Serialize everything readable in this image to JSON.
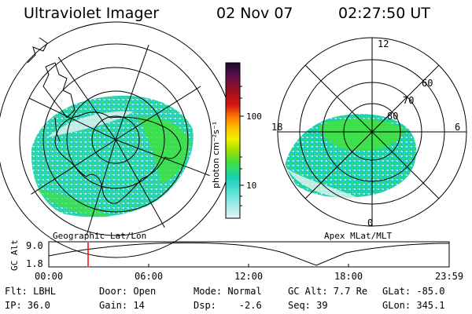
{
  "header": {
    "instrument": "Ultraviolet Imager",
    "date": "02 Nov 07",
    "time": "02:27:50 UT"
  },
  "left_panel": {
    "caption": "Geographic Lat/Lon"
  },
  "right_panel": {
    "caption": "Apex MLat/MLT",
    "mlt_labels": {
      "top": "12",
      "left": "18",
      "right": "6",
      "bottom": "0"
    },
    "lat_labels": [
      "60",
      "70",
      "80"
    ]
  },
  "colorbar": {
    "label": "photon cm⁻²s⁻¹",
    "ticks": [
      "100",
      "10"
    ],
    "colors": [
      "#1a0a2e",
      "#5a0f4a",
      "#9e0f1f",
      "#d41414",
      "#ff7a00",
      "#ffc200",
      "#f0f000",
      "#a8e000",
      "#40e040",
      "#19cfb5",
      "#5de3d8",
      "#a6ecec",
      "#e6f2f2"
    ]
  },
  "altitude_plot": {
    "ylabel": "GC Alt",
    "y_ticks": [
      "9.0",
      "1.8"
    ],
    "x_ticks": [
      "00:00",
      "06:00",
      "12:00",
      "18:00",
      "23:59"
    ],
    "marker_color": "#ff0000"
  },
  "status": {
    "flt": "Flt: LBHL",
    "ip": "IP: 36.0",
    "door": "Door: Open",
    "gain": "Gain: 14",
    "mode": "Mode: Normal",
    "dsp": "Dsp:    -2.6",
    "gc_alt": "GC Alt: 7.7 Re",
    "seq": "Seq: 39",
    "glat": "GLat: -85.0",
    "glon": "GLon: 345.1"
  }
}
